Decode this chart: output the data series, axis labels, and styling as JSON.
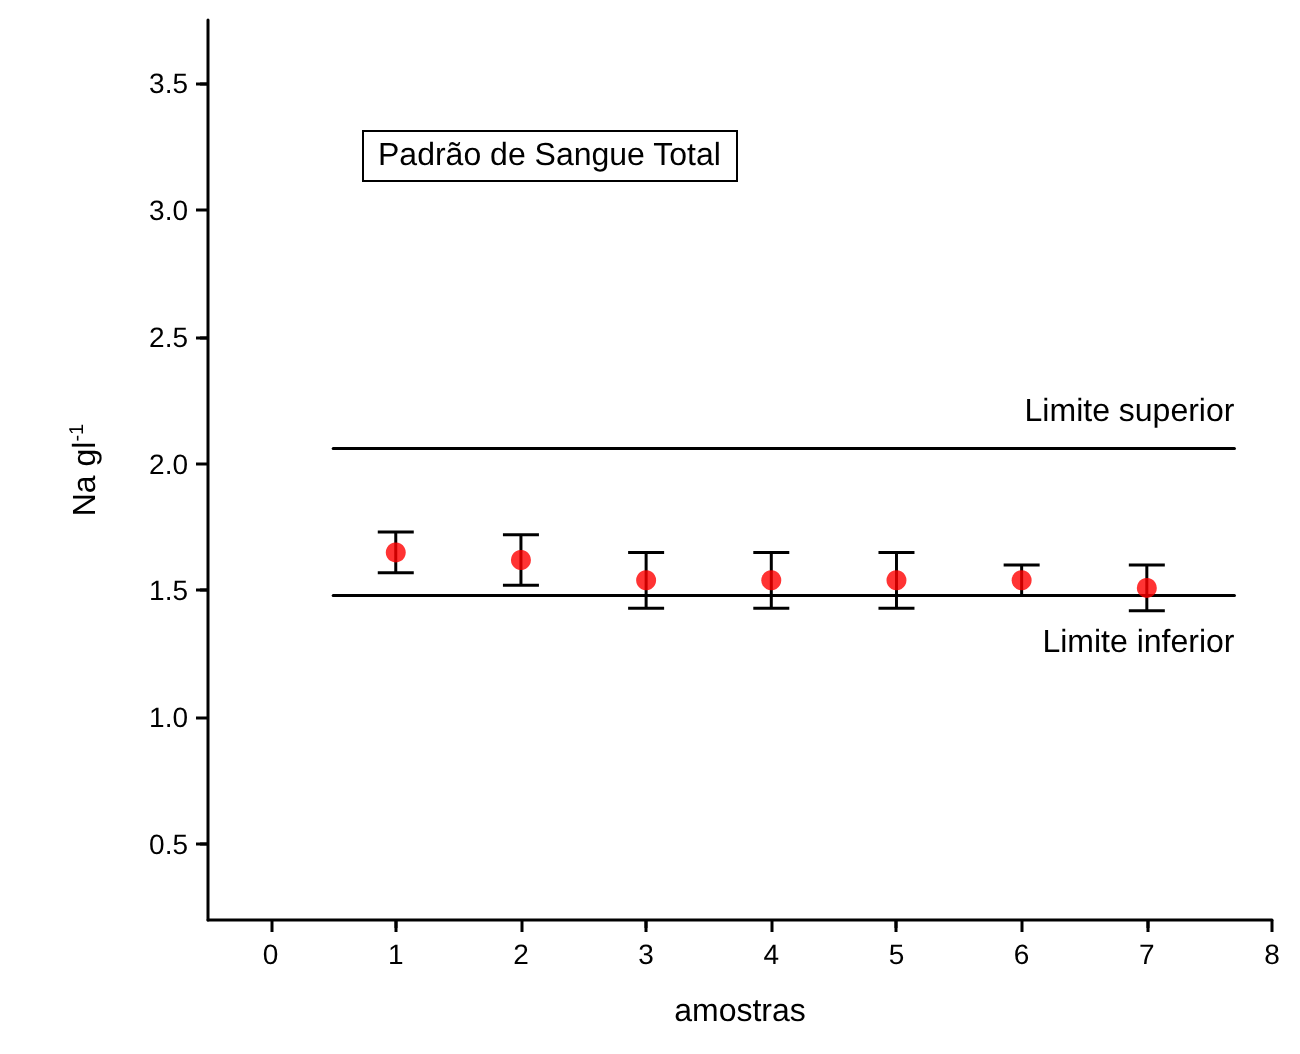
{
  "chart_data": {
    "type": "scatter",
    "title": "Padrão de Sangue Total",
    "xlabel": "amostras",
    "ylabel": "Na gl$^{-1}$",
    "xlim": [
      -0.5,
      8
    ],
    "xticks": [
      0,
      1,
      2,
      3,
      4,
      5,
      6,
      7,
      8
    ],
    "ylim": [
      0.2,
      3.75
    ],
    "yticks": [
      0.5,
      {
        "value": 1,
        "label": "1.0"
      },
      1.5,
      {
        "value": 2,
        "label": "2.0"
      },
      2.5,
      {
        "value": 3,
        "label": "3.0"
      },
      3.5
    ],
    "grid": false,
    "legend": false,
    "series": [
      {
        "type": "line",
        "name": "Limite superior",
        "color": "#000000",
        "x": [
          0.5,
          7.7
        ],
        "values": [
          2.06,
          2.06
        ],
        "marker": "none",
        "line_style": "solid"
      },
      {
        "type": "line",
        "name": "Limite inferior",
        "color": "#000000",
        "x": [
          0.5,
          7.7
        ],
        "values": [
          1.48,
          1.48
        ],
        "marker": "none",
        "line_style": "solid"
      },
      {
        "type": "scatter",
        "color": "#ff0000",
        "marker": "circle",
        "x": [
          1,
          2,
          3,
          4,
          5,
          6,
          7
        ],
        "values": [
          1.65,
          1.62,
          1.54,
          1.54,
          1.54,
          1.54,
          1.51
        ],
        "errors": [
          0.08,
          0.1,
          0.11,
          0.11,
          0.11,
          0.06,
          0.09
        ]
      }
    ]
  }
}
